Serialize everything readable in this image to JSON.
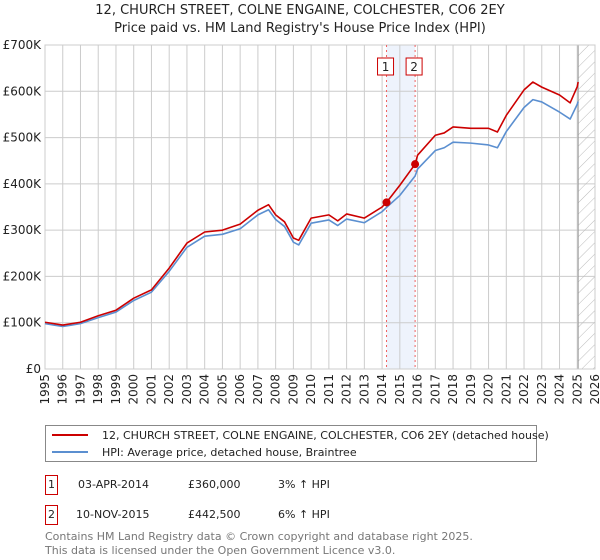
{
  "title": "12, CHURCH STREET, COLNE ENGAINE, COLCHESTER, CO6 2EY",
  "subtitle": "Price paid vs. HM Land Registry's House Price Index (HPI)",
  "chart_data": {
    "type": "line",
    "xlim": [
      1995,
      2026
    ],
    "ylim": [
      0,
      700000
    ],
    "ytick_labels": [
      "£0",
      "£100K",
      "£200K",
      "£300K",
      "£400K",
      "£500K",
      "£600K",
      "£700K"
    ],
    "yticks": [
      0,
      100000,
      200000,
      300000,
      400000,
      500000,
      600000,
      700000
    ],
    "xticks": [
      1995,
      1996,
      1997,
      1998,
      1999,
      2000,
      2001,
      2002,
      2003,
      2004,
      2005,
      2006,
      2007,
      2008,
      2009,
      2010,
      2011,
      2012,
      2013,
      2014,
      2015,
      2016,
      2017,
      2018,
      2019,
      2020,
      2021,
      2022,
      2023,
      2024,
      2025,
      2026
    ],
    "grid": true,
    "forecast_hatch_from": 2025.05,
    "series": [
      {
        "name": "12, CHURCH STREET, COLNE ENGAINE, COLCHESTER, CO6 2EY (detached house)",
        "color": "#cc0000",
        "x": [
          1995,
          1995.5,
          1996,
          1996.5,
          1997,
          1998,
          1999,
          2000,
          2001,
          2002,
          2002.5,
          2003,
          2004,
          2005,
          2006,
          2007,
          2007.6,
          2008,
          2008.5,
          2009,
          2009.3,
          2010,
          2011,
          2011.5,
          2012,
          2013,
          2014,
          2014.25,
          2015,
          2015.86,
          2016,
          2017,
          2017.5,
          2018,
          2019,
          2020,
          2020.5,
          2021,
          2022,
          2022.5,
          2023,
          2024,
          2024.6,
          2025,
          2025.05
        ],
        "y": [
          101000,
          98000,
          95000,
          98000,
          101000,
          115000,
          127000,
          153000,
          171000,
          218000,
          245000,
          272000,
          296000,
          300000,
          313000,
          343000,
          355000,
          333000,
          318000,
          283000,
          278000,
          326000,
          333000,
          320000,
          335000,
          326000,
          350000,
          360000,
          397000,
          442500,
          462000,
          505000,
          510000,
          523000,
          520000,
          520000,
          512000,
          548000,
          603000,
          620000,
          609000,
          592000,
          575000,
          610000,
          620000
        ]
      },
      {
        "name": "HPI: Average price, detached house, Braintree",
        "color": "#5b8fd0",
        "x": [
          1995,
          1995.5,
          1996,
          1996.5,
          1997,
          1998,
          1999,
          2000,
          2001,
          2002,
          2002.5,
          2003,
          2004,
          2005,
          2006,
          2007,
          2007.6,
          2008,
          2008.5,
          2009,
          2009.3,
          2010,
          2011,
          2011.5,
          2012,
          2013,
          2014,
          2014.25,
          2015,
          2015.86,
          2016,
          2017,
          2017.5,
          2018,
          2019,
          2020,
          2020.5,
          2021,
          2022,
          2022.5,
          2023,
          2024,
          2024.6,
          2025,
          2025.05
        ],
        "y": [
          98000,
          95000,
          92000,
          95000,
          98000,
          111000,
          123000,
          148000,
          166000,
          211000,
          237000,
          263000,
          287000,
          291000,
          303000,
          333000,
          344000,
          323000,
          308000,
          274000,
          268000,
          315000,
          322000,
          310000,
          324000,
          316000,
          340000,
          349000,
          375000,
          417000,
          432000,
          472000,
          478000,
          490000,
          488000,
          484000,
          478000,
          513000,
          565000,
          582000,
          577000,
          555000,
          540000,
          572000,
          578000
        ]
      }
    ],
    "sales": [
      {
        "label": "1",
        "x": 2014.25,
        "y": 360000
      },
      {
        "label": "2",
        "x": 2015.86,
        "y": 442500
      }
    ]
  },
  "legend": {
    "red": "12, CHURCH STREET, COLNE ENGAINE, COLCHESTER, CO6 2EY (detached house)",
    "blue": "HPI: Average price, detached house, Braintree"
  },
  "table": [
    {
      "num": "1",
      "date": "03-APR-2014",
      "price": "£360,000",
      "hpi": "3% ↑ HPI"
    },
    {
      "num": "2",
      "date": "10-NOV-2015",
      "price": "£442,500",
      "hpi": "6% ↑ HPI"
    }
  ],
  "footer": {
    "line1": "Contains HM Land Registry data © Crown copyright and database right 2025.",
    "line2": "This data is licensed under the Open Government Licence v3.0."
  }
}
